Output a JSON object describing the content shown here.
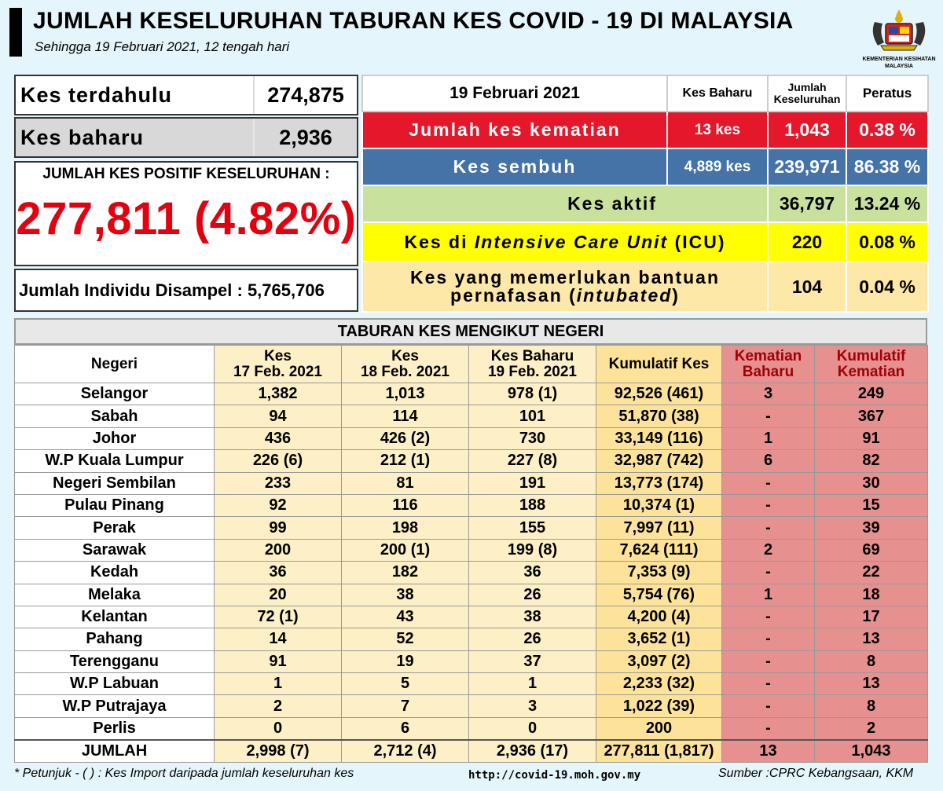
{
  "header": {
    "title": "JUMLAH KESELURUHAN TABURAN KES COVID - 19 DI MALAYSIA",
    "subtitle": "Sehingga 19 Februari 2021, 12 tengah hari",
    "ministry_line1": "KEMENTERIAN KESIHATAN",
    "ministry_line2": "MALAYSIA"
  },
  "summary_left": {
    "prev_label": "Kes terdahulu",
    "prev_value": "274,875",
    "new_label": "Kes baharu",
    "new_value": "2,936",
    "positive_label": "JUMLAH KES POSITIF KESELURUHAN :",
    "positive_value": "277,811 (4.82%)",
    "sampled_text": "Jumlah Individu Disampel : 5,765,706"
  },
  "summary_right": {
    "headers": {
      "date": "19 Februari 2021",
      "new": "Kes Baharu",
      "total_line1": "Jumlah",
      "total_line2": "Keseluruhan",
      "percent": "Peratus"
    },
    "rows": {
      "deaths": {
        "label": "Jumlah kes kematian",
        "new": "13 kes",
        "total": "1,043",
        "percent": "0.38 %"
      },
      "recovered": {
        "label": "Kes sembuh",
        "new": "4,889 kes",
        "total": "239,971",
        "percent": "86.38 %"
      },
      "active": {
        "label": "Kes aktif",
        "total": "36,797",
        "percent": "13.24 %"
      },
      "icu": {
        "label_pre": "Kes di ",
        "label_em": "Intensive Care Unit",
        "label_post": " (ICU)",
        "total": "220",
        "percent": "0.08 %"
      },
      "intubated": {
        "label_line1": "Kes yang memerlukan bantuan",
        "label_line2_pre": "pernafasan (",
        "label_line2_em": "intubated",
        "label_line2_post": ")",
        "total": "104",
        "percent": "0.04 %"
      }
    }
  },
  "state_table": {
    "title": "TABURAN KES MENGIKUT NEGERI",
    "headers": {
      "state": "Negeri",
      "feb17_l1": "Kes",
      "feb17_l2": "17 Feb. 2021",
      "feb18_l1": "Kes",
      "feb18_l2": "18 Feb. 2021",
      "feb19_l1": "Kes Baharu",
      "feb19_l2": "19 Feb. 2021",
      "cumulative": "Kumulatif Kes",
      "new_deaths_l1": "Kematian",
      "new_deaths_l2": "Baharu",
      "cum_deaths_l1": "Kumulatif",
      "cum_deaths_l2": "Kematian"
    },
    "rows": [
      [
        "Selangor",
        "1,382",
        "1,013",
        "978 (1)",
        "92,526 (461)",
        "3",
        "249"
      ],
      [
        "Sabah",
        "94",
        "114",
        "101",
        "51,870 (38)",
        "-",
        "367"
      ],
      [
        "Johor",
        "436",
        "426 (2)",
        "730",
        "33,149 (116)",
        "1",
        "91"
      ],
      [
        "W.P Kuala Lumpur",
        "226 (6)",
        "212 (1)",
        "227 (8)",
        "32,987 (742)",
        "6",
        "82"
      ],
      [
        "Negeri Sembilan",
        "233",
        "81",
        "191",
        "13,773 (174)",
        "-",
        "30"
      ],
      [
        "Pulau Pinang",
        "92",
        "116",
        "188",
        "10,374 (1)",
        "-",
        "15"
      ],
      [
        "Perak",
        "99",
        "198",
        "155",
        "7,997 (11)",
        "-",
        "39"
      ],
      [
        "Sarawak",
        "200",
        "200 (1)",
        "199 (8)",
        "7,624 (111)",
        "2",
        "69"
      ],
      [
        "Kedah",
        "36",
        "182",
        "36",
        "7,353 (9)",
        "-",
        "22"
      ],
      [
        "Melaka",
        "20",
        "38",
        "26",
        "5,754 (76)",
        "1",
        "18"
      ],
      [
        "Kelantan",
        "72 (1)",
        "43",
        "38",
        "4,200 (4)",
        "-",
        "17"
      ],
      [
        "Pahang",
        "14",
        "52",
        "26",
        "3,652 (1)",
        "-",
        "13"
      ],
      [
        "Terengganu",
        "91",
        "19",
        "37",
        "3,097 (2)",
        "-",
        "8"
      ],
      [
        "W.P Labuan",
        "1",
        "5",
        "1",
        "2,233 (32)",
        "-",
        "13"
      ],
      [
        "W.P Putrajaya",
        "2",
        "7",
        "3",
        "1,022 (39)",
        "-",
        "8"
      ],
      [
        "Perlis",
        "0",
        "6",
        "0",
        "200",
        "-",
        "2"
      ]
    ],
    "total": [
      "JUMLAH",
      "2,998 (7)",
      "2,712 (4)",
      "2,936 (17)",
      "277,811 (1,817)",
      "13",
      "1,043"
    ]
  },
  "footer": {
    "note": "* Petunjuk  - (  ) : Kes Import daripada jumlah keseluruhan kes",
    "url": "http://covid-19.moh.gov.my",
    "source": "Sumber :CPRC Kebangsaan,  KKM"
  },
  "colors": {
    "deaths_row": "#e4172b",
    "recovered_row": "#4573a8",
    "active_row": "#c8e29d",
    "icu_row": "#ffff00",
    "intubated_row": "#fde8a8",
    "positive_value": "#e3000f",
    "death_columns": "#e69090"
  }
}
